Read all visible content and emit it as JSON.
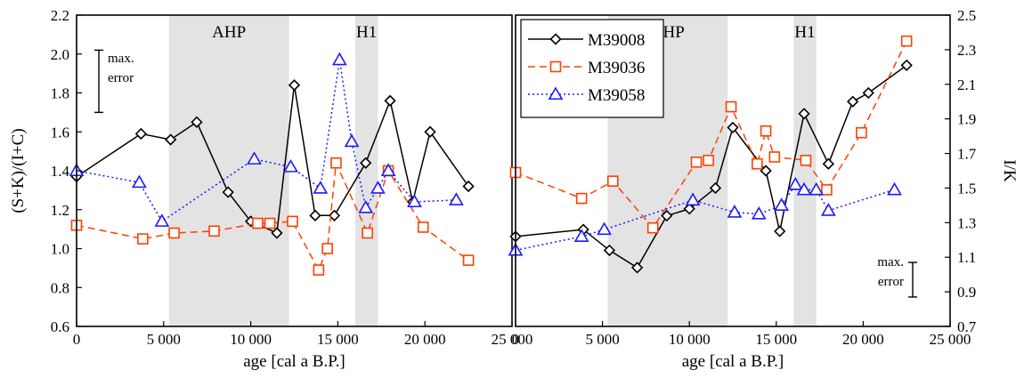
{
  "chart_data": [
    {
      "type": "line",
      "panel": "left",
      "xlabel": "age [cal a B.P.]",
      "ylabel": "(S+K)/(I+C)",
      "xlim": [
        0,
        25000
      ],
      "ylim": [
        0.6,
        2.2
      ],
      "xticks": [
        0,
        5000,
        10000,
        15000,
        20000,
        25000
      ],
      "xtick_labels": [
        "0",
        "5 000",
        "10 000",
        "15 000",
        "20 000",
        "25 000"
      ],
      "yticks": [
        0.6,
        0.8,
        1.0,
        1.2,
        1.4,
        1.6,
        1.8,
        2.0,
        2.2
      ],
      "ytick_labels": [
        "0.6",
        "0.8",
        "1.0",
        "1.2",
        "1.4",
        "1.6",
        "1.8",
        "2.0",
        "2.2"
      ],
      "bands": [
        {
          "label": "AHP",
          "from": 5300,
          "to": 12200
        },
        {
          "label": "H1",
          "from": 16000,
          "to": 17300
        }
      ],
      "error_note": "max.\nerror",
      "error_lines": [
        "max.",
        "error"
      ],
      "error_bar": {
        "center": 1.86,
        "half": 0.16
      },
      "series": [
        {
          "name": "M39008",
          "color": "#000000",
          "marker": "diamond",
          "dash": "solid",
          "x": [
            0,
            3700,
            5400,
            6900,
            8700,
            10000,
            11500,
            12500,
            13700,
            14800,
            16600,
            18000,
            19300,
            20300,
            22500
          ],
          "y": [
            1.37,
            1.59,
            1.56,
            1.65,
            1.29,
            1.14,
            1.08,
            1.84,
            1.17,
            1.17,
            1.44,
            1.76,
            1.24,
            1.6,
            1.32
          ]
        },
        {
          "name": "M39036",
          "color": "#ff4000",
          "marker": "square",
          "dash": "dashed",
          "x": [
            0,
            3800,
            5600,
            7900,
            10400,
            11100,
            12400,
            13900,
            14400,
            14900,
            16700,
            17900,
            19900,
            22500
          ],
          "y": [
            1.12,
            1.05,
            1.08,
            1.09,
            1.13,
            1.13,
            1.14,
            0.89,
            1.0,
            1.44,
            1.08,
            1.4,
            1.11,
            0.94
          ]
        },
        {
          "name": "M39058",
          "color": "#1a1aff",
          "marker": "triangle",
          "dash": "dotted",
          "x": [
            0,
            3600,
            4900,
            10200,
            12300,
            14000,
            15100,
            15800,
            16600,
            17300,
            17900,
            19400,
            21800
          ],
          "y": [
            1.4,
            1.34,
            1.14,
            1.46,
            1.42,
            1.31,
            1.97,
            1.55,
            1.21,
            1.31,
            1.4,
            1.24,
            1.25
          ]
        }
      ]
    },
    {
      "type": "line",
      "panel": "right",
      "xlabel": "age [cal a B.P.]",
      "ylabel": "I/K",
      "xlim": [
        0,
        25000
      ],
      "ylim": [
        0.7,
        2.5
      ],
      "xticks": [
        0,
        5000,
        10000,
        15000,
        20000,
        25000
      ],
      "xtick_labels": [
        "0",
        "5 000",
        "10 000",
        "15 000",
        "20 000",
        "25 000"
      ],
      "yticks": [
        0.7,
        0.9,
        1.1,
        1.3,
        1.5,
        1.7,
        1.9,
        2.1,
        2.3,
        2.5
      ],
      "ytick_labels": [
        "0.7",
        "0.9",
        "1.1",
        "1.3",
        "1.5",
        "1.7",
        "1.9",
        "2.1",
        "2.3",
        "2.5"
      ],
      "bands": [
        {
          "label": "AHP",
          "from": 5300,
          "to": 12200
        },
        {
          "label": "H1",
          "from": 16000,
          "to": 17300
        }
      ],
      "error_note": "max.\nerror",
      "error_lines": [
        "max.",
        "error"
      ],
      "error_bar": {
        "center": 0.97,
        "half": 0.1
      },
      "series": [
        {
          "name": "M39008",
          "color": "#000000",
          "marker": "diamond",
          "dash": "solid",
          "x": [
            0,
            3900,
            5400,
            7000,
            8700,
            10000,
            11500,
            12500,
            14400,
            15200,
            16600,
            18000,
            19400,
            20300,
            22500
          ],
          "y": [
            1.22,
            1.26,
            1.14,
            1.04,
            1.34,
            1.38,
            1.5,
            1.85,
            1.6,
            1.25,
            1.93,
            1.64,
            2.0,
            2.05,
            2.21
          ]
        },
        {
          "name": "M39036",
          "color": "#ff4000",
          "marker": "square",
          "dash": "dashed",
          "x": [
            0,
            3800,
            5600,
            7900,
            10400,
            11100,
            12400,
            13900,
            14400,
            14900,
            16700,
            17900,
            19900,
            22500
          ],
          "y": [
            1.59,
            1.44,
            1.54,
            1.27,
            1.65,
            1.66,
            1.97,
            1.64,
            1.83,
            1.68,
            1.66,
            1.49,
            1.82,
            2.35
          ]
        },
        {
          "name": "M39058",
          "color": "#1a1aff",
          "marker": "triangle",
          "dash": "dotted",
          "x": [
            0,
            3800,
            5100,
            10200,
            12600,
            14000,
            15300,
            16100,
            16600,
            17300,
            18000,
            21800
          ],
          "y": [
            1.14,
            1.22,
            1.26,
            1.43,
            1.36,
            1.35,
            1.4,
            1.52,
            1.49,
            1.49,
            1.37,
            1.49
          ]
        }
      ]
    }
  ]
}
